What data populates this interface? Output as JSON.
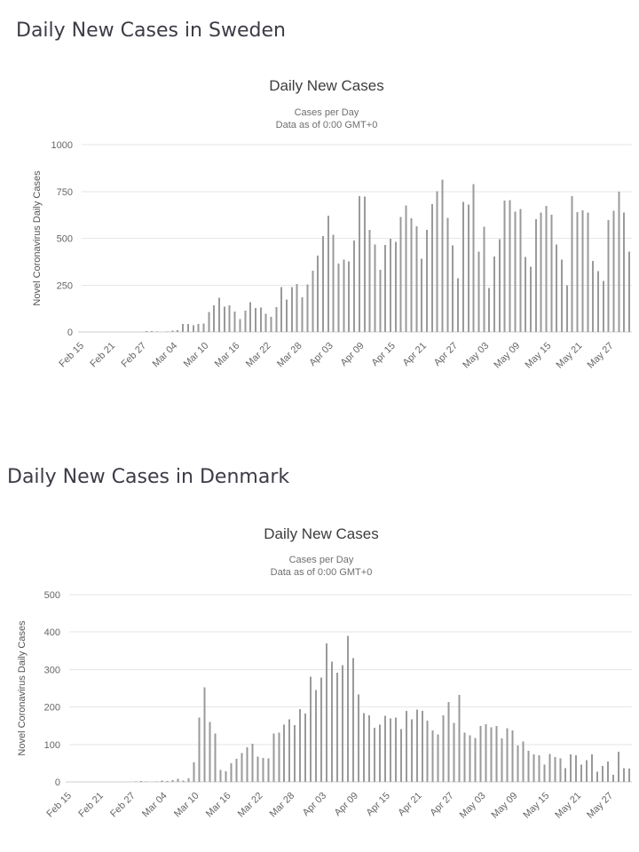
{
  "page": {
    "background": "#ffffff"
  },
  "sections": [
    {
      "id": "sweden",
      "heading": "Daily New Cases in Sweden"
    },
    {
      "id": "denmark",
      "heading": "Daily New Cases in Denmark"
    }
  ],
  "chart_data": [
    {
      "type": "bar",
      "country": "Sweden",
      "title": "Daily New Cases",
      "subtitle_lines": [
        "Cases per Day",
        "Data as of 0:00 GMT+0"
      ],
      "ylabel": "Novel Coronavirus Daily Cases",
      "ylim": [
        0,
        1000
      ],
      "yticks": [
        0,
        250,
        500,
        750,
        1000
      ],
      "x_tick_labels": [
        "Feb 15",
        "Feb 21",
        "Feb 27",
        "Mar 04",
        "Mar 10",
        "Mar 16",
        "Mar 22",
        "Mar 28",
        "Apr 03",
        "Apr 09",
        "Apr 15",
        "Apr 21",
        "Apr 27",
        "May 03",
        "May 09",
        "May 15",
        "May 21",
        "May 27"
      ],
      "x_tick_every": 6,
      "x_start_label": "Feb 15",
      "n_points": 106,
      "values": [
        0,
        0,
        0,
        0,
        0,
        0,
        0,
        0,
        0,
        0,
        0,
        1,
        5,
        4,
        2,
        1,
        2,
        7,
        10,
        42,
        43,
        36,
        42,
        45,
        107,
        142,
        182,
        135,
        142,
        109,
        68,
        113,
        159,
        128,
        131,
        96,
        80,
        132,
        240,
        172,
        240,
        255,
        184,
        253,
        328,
        407,
        512,
        621,
        519,
        365,
        387,
        376,
        487,
        726,
        722,
        544,
        466,
        332,
        465,
        497,
        482,
        613,
        676,
        606,
        563,
        392,
        545,
        682,
        751,
        812,
        610,
        463,
        286,
        695,
        681,
        790,
        428,
        562,
        235,
        404,
        495,
        702,
        705,
        642,
        656,
        401,
        348,
        602,
        637,
        673,
        625,
        466,
        386,
        250,
        724,
        639,
        649,
        637,
        380,
        325,
        272,
        597,
        648,
        749,
        637,
        429
      ],
      "bar_color": "#9a9a9a",
      "gridline_color": "#e6e6e6",
      "axis_line_color": "#cccccc",
      "tick_label_color": "#666666",
      "ylabel_color": "#555555",
      "grid": true,
      "legend": "none"
    },
    {
      "type": "bar",
      "country": "Denmark",
      "title": "Daily New Cases",
      "subtitle_lines": [
        "Cases per Day",
        "Data as of 0:00 GMT+0"
      ],
      "ylabel": "Novel Coronavirus Daily Cases",
      "ylim": [
        0,
        500
      ],
      "yticks": [
        0,
        100,
        200,
        300,
        400,
        500
      ],
      "x_tick_labels": [
        "Feb 15",
        "Feb 21",
        "Feb 27",
        "Mar 04",
        "Mar 10",
        "Mar 16",
        "Mar 22",
        "Mar 28",
        "Apr 03",
        "Apr 09",
        "Apr 15",
        "Apr 21",
        "Apr 27",
        "May 03",
        "May 09",
        "May 15",
        "May 21",
        "May 27"
      ],
      "x_tick_every": 6,
      "x_start_label": "Feb 15",
      "n_points": 106,
      "values": [
        0,
        0,
        0,
        0,
        0,
        0,
        0,
        0,
        0,
        0,
        0,
        0,
        1,
        2,
        1,
        0,
        1,
        3,
        2,
        5,
        8,
        4,
        9,
        52,
        172,
        252,
        160,
        129,
        32,
        28,
        50,
        62,
        77,
        93,
        102,
        68,
        64,
        63,
        129,
        131,
        153,
        167,
        152,
        194,
        182,
        281,
        245,
        278,
        370,
        321,
        292,
        312,
        390,
        331,
        233,
        184,
        178,
        144,
        153,
        177,
        170,
        172,
        141,
        189,
        167,
        193,
        190,
        164,
        137,
        127,
        178,
        213,
        158,
        232,
        132,
        125,
        117,
        149,
        154,
        146,
        149,
        116,
        143,
        137,
        97,
        108,
        83,
        74,
        71,
        46,
        75,
        66,
        63,
        37,
        74,
        71,
        46,
        58,
        74,
        27,
        43,
        54,
        19,
        81,
        37,
        35
      ],
      "bar_color": "#9a9a9a",
      "gridline_color": "#e6e6e6",
      "axis_line_color": "#cccccc",
      "tick_label_color": "#666666",
      "ylabel_color": "#555555",
      "grid": true,
      "legend": "none"
    }
  ]
}
